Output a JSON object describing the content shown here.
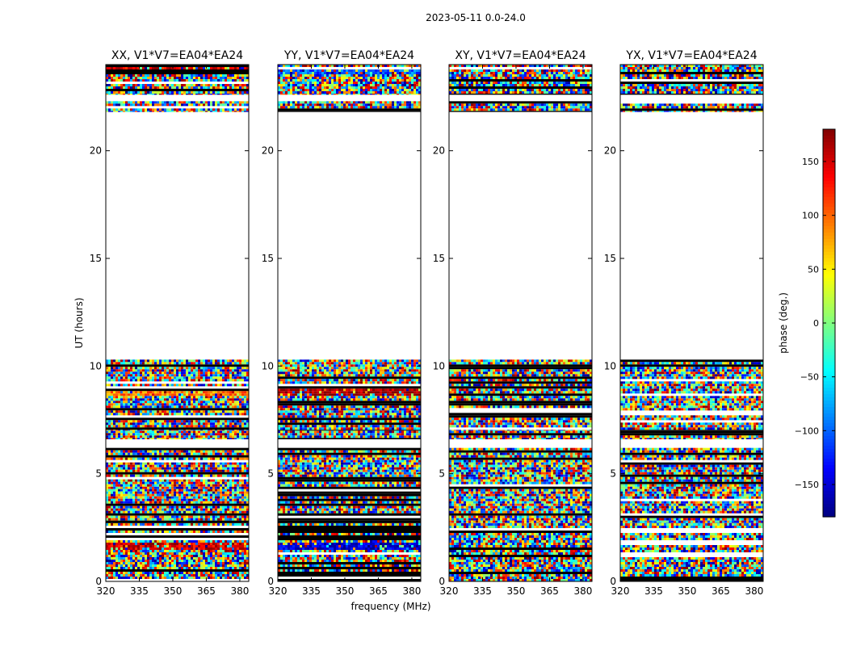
{
  "chart_data": {
    "type": "heatmap",
    "title": "2023-05-11 0.0-24.0",
    "xlabel": "frequency (MHz)",
    "ylabel": "UT (hours)",
    "xlim": [
      320,
      384
    ],
    "ylim": [
      0,
      24
    ],
    "xticks": [
      320,
      335,
      350,
      365,
      380
    ],
    "yticks": [
      0,
      5,
      10,
      15,
      20
    ],
    "panels": [
      {
        "title": "XX, V1*V7=EA04*EA24",
        "bias_bands": [
          {
            "t0": 8.6,
            "t1": 8.9,
            "phase": 90
          },
          {
            "t0": 1.5,
            "t1": 1.8,
            "phase": 150
          },
          {
            "t0": 23.8,
            "t1": 24.0,
            "phase": 150
          }
        ]
      },
      {
        "title": "YY, V1*V7=EA04*EA24",
        "bias_bands": [
          {
            "t0": 8.6,
            "t1": 8.9,
            "phase": 170
          },
          {
            "t0": 1.5,
            "t1": 1.8,
            "phase": -150
          },
          {
            "t0": 23.6,
            "t1": 23.9,
            "phase": -100
          }
        ]
      },
      {
        "title": "XY, V1*V7=EA04*EA24",
        "bias_bands": []
      },
      {
        "title": "YX, V1*V7=EA04*EA24",
        "bias_bands": []
      }
    ],
    "data_time_ranges": [
      [
        0,
        2.7
      ],
      [
        2.7,
        4.4
      ],
      [
        4.4,
        6.2
      ],
      [
        6.6,
        7.0
      ],
      [
        7.0,
        10.3
      ],
      [
        21.8,
        22.3
      ],
      [
        22.6,
        24.0
      ]
    ],
    "empty_time_ranges": [
      [
        10.3,
        21.8
      ]
    ],
    "colorbar": {
      "label": "phase (deg.)",
      "range": [
        -180,
        180
      ],
      "ticks": [
        -150,
        -100,
        -50,
        0,
        50,
        100,
        150
      ],
      "tick_labels": [
        "−150",
        "−100",
        "−50",
        "0",
        "50",
        "100",
        "150"
      ]
    }
  }
}
